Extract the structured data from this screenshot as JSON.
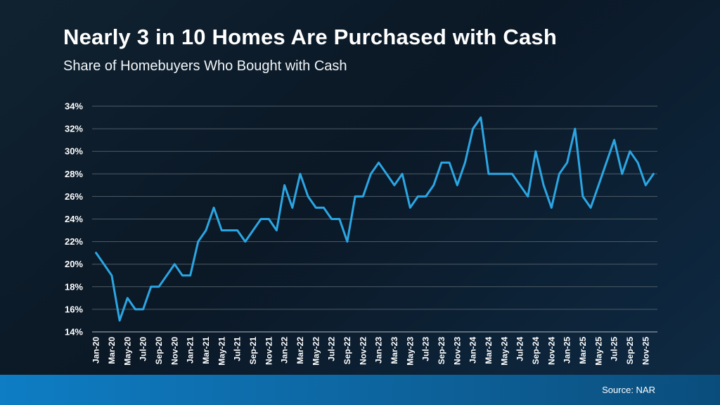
{
  "slide": {
    "title": "Nearly 3 in 10 Homes Are Purchased with Cash",
    "subtitle": "Share of Homebuyers Who Bought with Cash",
    "source": "Source: NAR"
  },
  "colors": {
    "background_top_left": "#102230",
    "background_middle": "#0B1826",
    "background_bottom_right": "#0E2B45",
    "title_text": "#FFFFFF",
    "axis_text": "#FFFFFF",
    "line": "#2BA6E3",
    "gridline": "#4E5C66",
    "baseline": "#79858E",
    "footer_bar_left": "#0E7DC4",
    "footer_bar_right": "#0A4D7C",
    "source_text": "#FFFFFF"
  },
  "chart_data": {
    "type": "line",
    "title": "Share of Homebuyers Who Bought with Cash",
    "xlabel": "",
    "ylabel": "",
    "ylim": [
      14,
      34
    ],
    "y_tick_step": 2,
    "y_tick_suffix": "%",
    "grid": true,
    "legend": "none",
    "x_tick_every": 2,
    "x": [
      "Jan-20",
      "Feb-20",
      "Mar-20",
      "Apr-20",
      "May-20",
      "Jun-20",
      "Jul-20",
      "Aug-20",
      "Sep-20",
      "Oct-20",
      "Nov-20",
      "Dec-20",
      "Jan-21",
      "Feb-21",
      "Mar-21",
      "Apr-21",
      "May-21",
      "Jun-21",
      "Jul-21",
      "Aug-21",
      "Sep-21",
      "Oct-21",
      "Nov-21",
      "Dec-21",
      "Jan-22",
      "Feb-22",
      "Mar-22",
      "Apr-22",
      "May-22",
      "Jun-22",
      "Jul-22",
      "Aug-22",
      "Sep-22",
      "Oct-22",
      "Nov-22",
      "Dec-22",
      "Jan-23",
      "Feb-23",
      "Mar-23",
      "Apr-23",
      "May-23",
      "Jun-23",
      "Jul-23",
      "Aug-23",
      "Sep-23",
      "Oct-23",
      "Nov-23",
      "Dec-23",
      "Jan-24",
      "Feb-24",
      "Mar-24",
      "Apr-24",
      "May-24",
      "Jun-24",
      "Jul-24",
      "Aug-24",
      "Sep-24",
      "Oct-24",
      "Nov-24",
      "Dec-24",
      "Jan-25",
      "Feb-25",
      "Mar-25",
      "Apr-25",
      "May-25",
      "Jun-25",
      "Jul-25",
      "Aug-25",
      "Sep-25",
      "Oct-25",
      "Nov-25",
      "Dec-25"
    ],
    "values": [
      21,
      20,
      19,
      15,
      17,
      16,
      16,
      18,
      18,
      19,
      20,
      19,
      19,
      22,
      23,
      25,
      23,
      23,
      23,
      22,
      23,
      24,
      24,
      23,
      27,
      25,
      28,
      26,
      25,
      25,
      24,
      24,
      22,
      26,
      26,
      28,
      29,
      28,
      27,
      28,
      25,
      26,
      26,
      27,
      29,
      29,
      27,
      29,
      32,
      33,
      28,
      28,
      28,
      28,
      27,
      26,
      30,
      27,
      25,
      28,
      29,
      32,
      26,
      25,
      27,
      29,
      31,
      28,
      30,
      29,
      27,
      28
    ]
  }
}
